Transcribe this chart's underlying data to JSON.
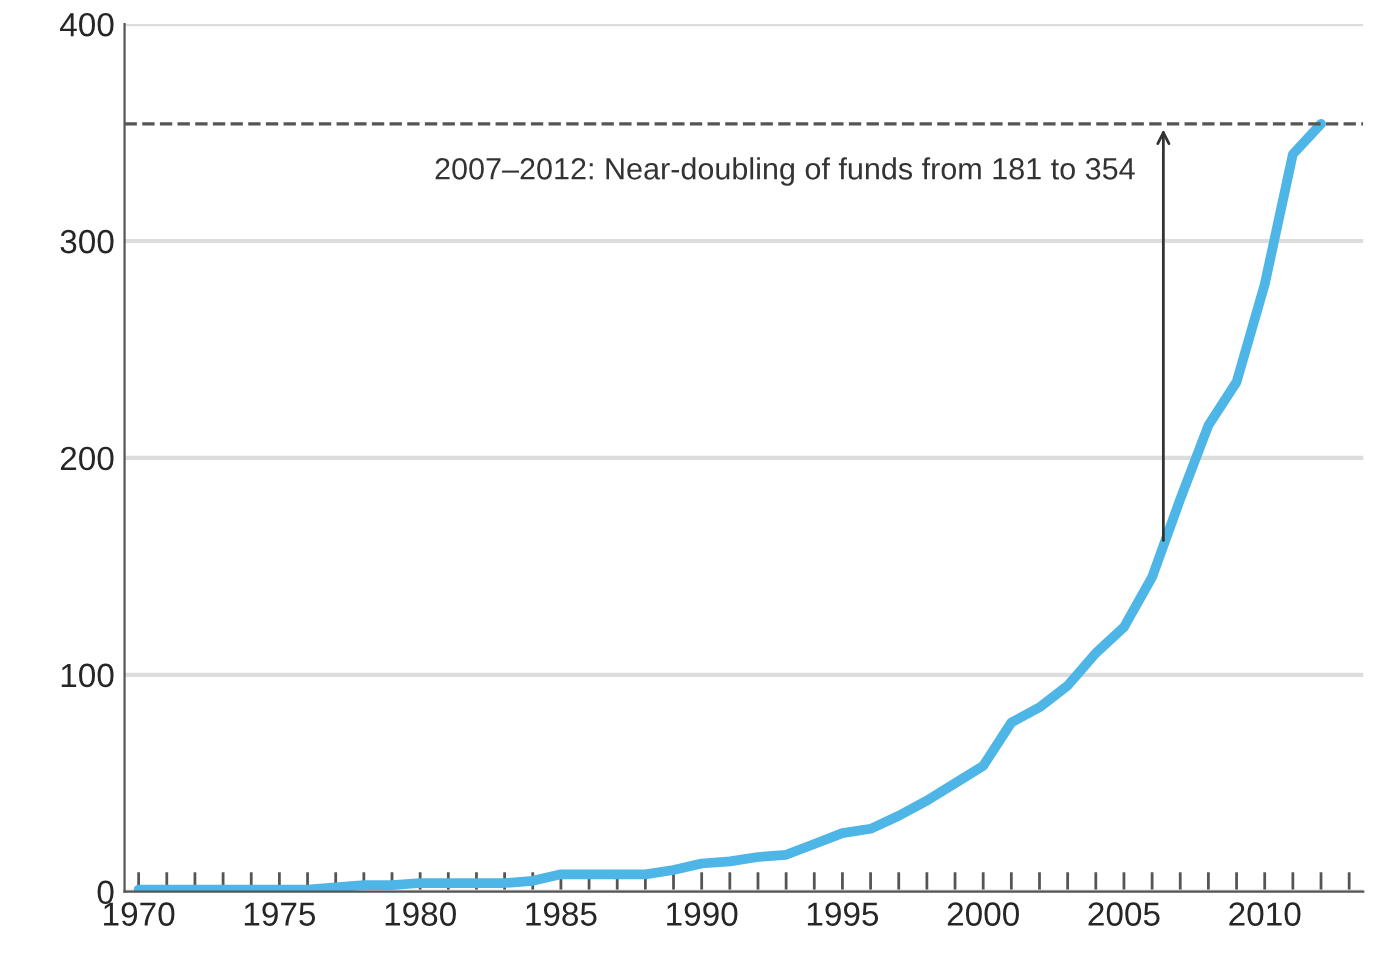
{
  "chart_data": {
    "type": "line",
    "x": [
      1970,
      1971,
      1972,
      1973,
      1974,
      1975,
      1976,
      1977,
      1978,
      1979,
      1980,
      1981,
      1982,
      1983,
      1984,
      1985,
      1986,
      1987,
      1988,
      1989,
      1990,
      1991,
      1992,
      1993,
      1994,
      1995,
      1996,
      1997,
      1998,
      1999,
      2000,
      2001,
      2002,
      2003,
      2004,
      2005,
      2006,
      2007,
      2008,
      2009,
      2010,
      2011,
      2012
    ],
    "series": [
      {
        "color": "#4db6e6",
        "values": [
          1,
          1,
          1,
          1,
          1,
          1,
          1,
          2,
          3,
          3,
          4,
          4,
          4,
          4,
          5,
          8,
          8,
          8,
          8,
          10,
          13,
          14,
          16,
          17,
          22,
          27,
          29,
          35,
          42,
          50,
          58,
          78,
          85,
          95,
          110,
          122,
          145,
          181,
          215,
          235,
          280,
          340,
          354
        ]
      }
    ],
    "xlim": [
      1969.5,
      2013.5
    ],
    "xticks": [
      1970,
      {
        "value": 1971,
        "label": null
      },
      {
        "value": 1972,
        "label": null
      },
      {
        "value": 1973,
        "label": null
      },
      {
        "value": 1974,
        "label": null
      },
      1975,
      {
        "value": 1976,
        "label": null
      },
      {
        "value": 1977,
        "label": null
      },
      {
        "value": 1978,
        "label": null
      },
      {
        "value": 1979,
        "label": null
      },
      1980,
      {
        "value": 1981,
        "label": null
      },
      {
        "value": 1982,
        "label": null
      },
      {
        "value": 1983,
        "label": null
      },
      {
        "value": 1984,
        "label": null
      },
      1985,
      {
        "value": 1986,
        "label": null
      },
      {
        "value": 1987,
        "label": null
      },
      {
        "value": 1988,
        "label": null
      },
      {
        "value": 1989,
        "label": null
      },
      1990,
      {
        "value": 1991,
        "label": null
      },
      {
        "value": 1992,
        "label": null
      },
      {
        "value": 1993,
        "label": null
      },
      {
        "value": 1994,
        "label": null
      },
      1995,
      {
        "value": 1996,
        "label": null
      },
      {
        "value": 1997,
        "label": null
      },
      {
        "value": 1998,
        "label": null
      },
      {
        "value": 1999,
        "label": null
      },
      2000,
      {
        "value": 2001,
        "label": null
      },
      {
        "value": 2002,
        "label": null
      },
      {
        "value": 2003,
        "label": null
      },
      {
        "value": 2004,
        "label": null
      },
      2005,
      {
        "value": 2006,
        "label": null
      },
      {
        "value": 2007,
        "label": null
      },
      {
        "value": 2008,
        "label": null
      },
      {
        "value": 2009,
        "label": null
      },
      2010,
      {
        "value": 2011,
        "label": null
      },
      {
        "value": 2012,
        "label": null
      },
      {
        "value": 2013,
        "label": null
      }
    ],
    "ylim": [
      0,
      400
    ],
    "yticks": [
      0,
      100,
      200,
      300,
      400
    ],
    "grid": "y",
    "legend": false,
    "marker": "none",
    "line_style": "solid",
    "ref_lines": [
      {
        "axis": "y",
        "value": 354,
        "color": "#555555",
        "line_style": "dashed"
      }
    ],
    "annotations": [
      {
        "text": "2007–2012: Near-doubling of funds from 181 to 354",
        "x": 2006.4,
        "y": 354
      }
    ]
  }
}
